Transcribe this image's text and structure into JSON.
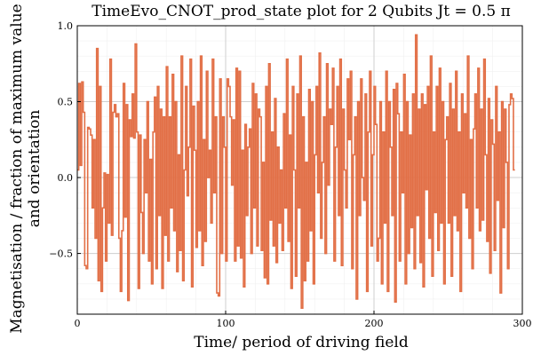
{
  "chart_data": {
    "type": "line",
    "step": true,
    "title": "TimeEvo_CNOT_prod_state plot for 2 Qubits Jt = 0.5 π",
    "xlabel": "Time/ period of driving field",
    "ylabel_lines": [
      "Magnetisation / fraction of maximum value",
      "and orientation"
    ],
    "xlim": [
      0,
      300
    ],
    "ylim": [
      -0.9,
      1.0
    ],
    "xticks": [
      {
        "value": 0,
        "label": "0"
      },
      {
        "value": 100,
        "label": "100"
      },
      {
        "value": 200,
        "label": "200"
      },
      {
        "value": 300,
        "label": "300"
      }
    ],
    "yticks": [
      {
        "value": -0.5,
        "label": "−0.5"
      },
      {
        "value": 0.0,
        "label": "0.0"
      },
      {
        "value": 0.5,
        "label": "0.5"
      },
      {
        "value": 1.0,
        "label": "1.0"
      }
    ],
    "grid": true,
    "minor_grid": true,
    "series": [
      {
        "color": "#E26F46",
        "x_start": 0,
        "x_step": 1,
        "y": [
          0.05,
          0.62,
          0.08,
          0.63,
          0.43,
          -0.58,
          -0.6,
          0.33,
          0.32,
          0.28,
          -0.2,
          0.25,
          -0.4,
          0.85,
          -0.68,
          0.6,
          -0.75,
          -0.2,
          0.03,
          -0.55,
          0.02,
          -0.3,
          0.78,
          -0.38,
          0.43,
          0.48,
          0.4,
          0.42,
          -0.4,
          -0.75,
          -0.35,
          0.62,
          -0.26,
          0.48,
          -0.81,
          0.38,
          0.27,
          0.55,
          0.26,
          0.88,
          0.3,
          -0.73,
          0.28,
          -0.23,
          -0.5,
          0.25,
          -0.1,
          0.5,
          -0.55,
          0.12,
          -0.7,
          0.3,
          0.53,
          -0.6,
          0.6,
          -0.25,
          0.45,
          -0.73,
          0.4,
          -0.38,
          0.73,
          -0.55,
          0.4,
          -0.2,
          0.68,
          -0.35,
          0.5,
          -0.62,
          0.15,
          -0.48,
          0.8,
          -0.68,
          0.05,
          0.6,
          -0.12,
          0.2,
          0.78,
          -0.72,
          0.47,
          0.18,
          -0.46,
          0.5,
          -0.35,
          0.8,
          -0.58,
          0.25,
          -0.42,
          0.7,
          0.0,
          0.18,
          -0.3,
          0.78,
          -0.1,
          0.4,
          -0.76,
          -0.78,
          0.65,
          -0.5,
          0.4,
          0.2,
          -0.55,
          0.65,
          0.6,
          0.4,
          -0.05,
          0.38,
          -0.55,
          0.72,
          -0.45,
          0.7,
          -0.53,
          0.18,
          -0.72,
          0.35,
          -0.25,
          0.2,
          0.32,
          -0.5,
          0.62,
          -0.2,
          0.55,
          -0.45,
          0.45,
          0.4,
          -0.48,
          0.1,
          -0.66,
          0.6,
          -0.7,
          0.75,
          -0.28,
          0.3,
          -0.45,
          0.52,
          -0.56,
          0.2,
          -0.3,
          0.05,
          -0.48,
          0.42,
          -0.2,
          0.78,
          -0.42,
          0.28,
          -0.73,
          0.6,
          0.05,
          -0.65,
          0.55,
          -0.2,
          0.8,
          -0.86,
          0.4,
          -0.68,
          0.1,
          -0.55,
          0.58,
          -0.35,
          0.5,
          -0.7,
          0.15,
          0.6,
          -0.1,
          0.82,
          -0.4,
          0.1,
          0.4,
          -0.5,
          0.75,
          -0.05,
          0.45,
          0.35,
          0.72,
          -0.55,
          0.2,
          0.6,
          -0.25,
          0.78,
          -0.58,
          0.45,
          0.05,
          -0.2,
          0.65,
          0.25,
          0.7,
          -0.6,
          0.15,
          0.4,
          -0.8,
          0.5,
          -0.25,
          0.65,
          0.0,
          -0.15,
          0.55,
          -0.75,
          0.3,
          0.7,
          -0.45,
          0.15,
          0.6,
          0.35,
          -0.55,
          -0.4,
          0.5,
          -0.7,
          0.3,
          -0.3,
          0.7,
          -0.75,
          0.5,
          0.2,
          -0.25,
          0.58,
          -0.82,
          0.62,
          0.42,
          -0.55,
          0.3,
          -0.1,
          0.68,
          -0.7,
          0.5,
          -0.5,
          0.28,
          -0.33,
          0.55,
          -0.6,
          0.94,
          -0.25,
          0.45,
          -0.56,
          0.55,
          -0.72,
          0.48,
          -0.08,
          0.6,
          -0.4,
          0.8,
          -0.65,
          0.3,
          -0.23,
          0.6,
          -0.48,
          0.72,
          -0.3,
          0.5,
          -0.7,
          0.25,
          0.4,
          -0.3,
          0.62,
          -0.65,
          0.45,
          -0.25,
          0.7,
          -0.35,
          0.3,
          -0.75,
          0.55,
          -0.1,
          0.42,
          -0.2,
          0.8,
          -0.4,
          0.25,
          -0.6,
          0.32,
          0.55,
          -0.2,
          0.72,
          -0.35,
          0.45,
          -0.28,
          0.78,
          0.15,
          -0.42,
          0.52,
          -0.63,
          0.38,
          0.22,
          -0.48,
          0.6,
          -0.15,
          0.3,
          -0.76,
          0.5,
          -0.33,
          0.45,
          0.1,
          -0.6,
          0.48,
          0.55,
          0.52,
          0.05
        ]
      }
    ]
  }
}
